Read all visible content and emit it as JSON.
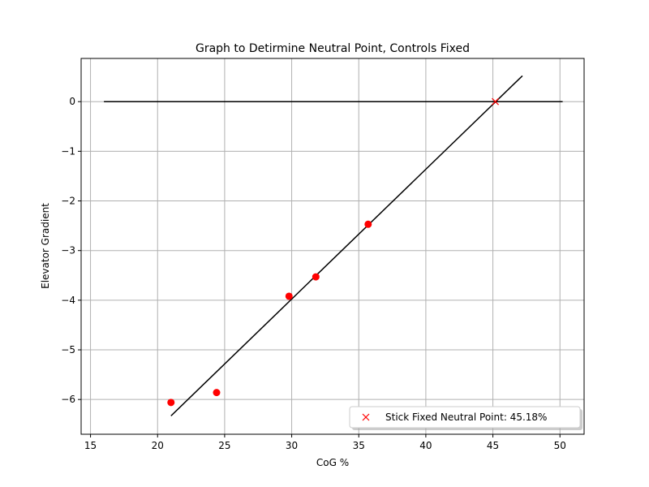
{
  "chart_data": {
    "type": "scatter",
    "title": "Graph to Detirmine Neutral Point, Controls Fixed",
    "xlabel": "CoG %",
    "ylabel": "Elevator Gradient",
    "xlim": [
      14.3,
      51.8
    ],
    "ylim": [
      -6.7,
      0.87
    ],
    "xticks": [
      15,
      20,
      25,
      30,
      35,
      40,
      45,
      50
    ],
    "yticks": [
      0,
      -1,
      -2,
      -3,
      -4,
      -5,
      -6
    ],
    "grid": true,
    "legend_position": "lower-right",
    "colors": {
      "points": "#ff0000",
      "lines": "#000000",
      "grid": "#b0b0b0"
    },
    "series": [
      {
        "kind": "points",
        "x": [
          21.0,
          24.4,
          29.8,
          31.8,
          35.7
        ],
        "y": [
          -6.06,
          -5.86,
          -3.92,
          -3.53,
          -2.47
        ]
      },
      {
        "kind": "fit-line",
        "x": [
          21.0,
          47.2
        ],
        "y": [
          -6.33,
          0.52
        ]
      },
      {
        "kind": "zero-line",
        "x": [
          16.0,
          50.2
        ],
        "y": [
          0,
          0
        ]
      },
      {
        "kind": "marker-x",
        "name": "Stick Fixed Neutral Point: 45.18%",
        "x": [
          45.18
        ],
        "y": [
          0
        ]
      }
    ]
  }
}
